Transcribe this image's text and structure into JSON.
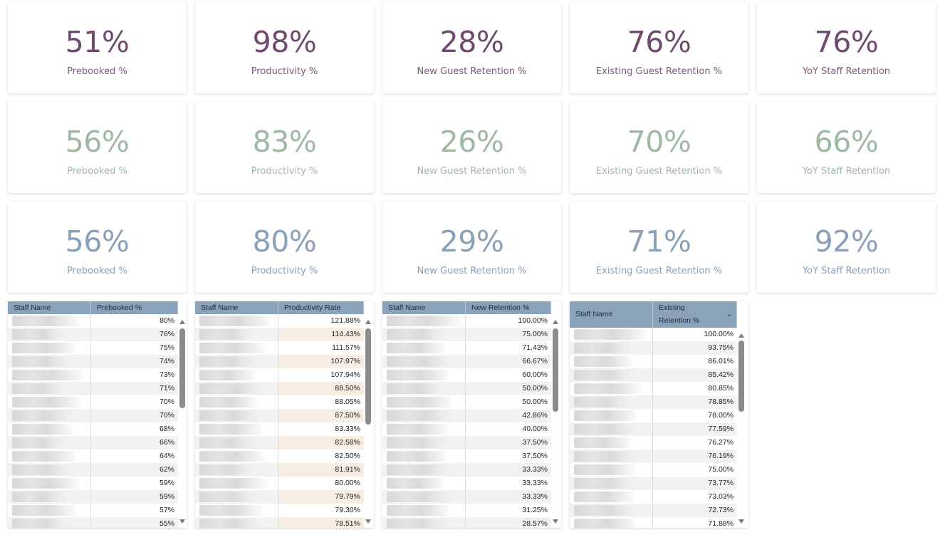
{
  "kpi_rows": [
    {
      "color": "#6e4a6e",
      "cards": [
        {
          "value": "51%",
          "label": "Prebooked %"
        },
        {
          "value": "98%",
          "label": "Productivity %"
        },
        {
          "value": "28%",
          "label": "New Guest Retention %"
        },
        {
          "value": "76%",
          "label": "Existing Guest Retention %"
        },
        {
          "value": "76%",
          "label": "YoY Staff Retention"
        }
      ]
    },
    {
      "color": "#9fb8a4",
      "cards": [
        {
          "value": "56%",
          "label": "Prebooked %"
        },
        {
          "value": "83%",
          "label": "Productivity %"
        },
        {
          "value": "26%",
          "label": "New Guest Retention %"
        },
        {
          "value": "70%",
          "label": "Existing Guest Retention %"
        },
        {
          "value": "66%",
          "label": "YoY Staff Retention"
        }
      ]
    },
    {
      "color": "#8aa0b8",
      "cards": [
        {
          "value": "56%",
          "label": "Prebooked %"
        },
        {
          "value": "80%",
          "label": "Productivity %"
        },
        {
          "value": "29%",
          "label": "New Guest Retention %"
        },
        {
          "value": "71%",
          "label": "Existing Guest Retention %"
        },
        {
          "value": "92%",
          "label": "YoY Staff Retention"
        }
      ]
    }
  ],
  "tables": [
    {
      "headers": [
        "Staff Name",
        "Prebooked %"
      ],
      "values": [
        "80%",
        "76%",
        "75%",
        "74%",
        "73%",
        "71%",
        "70%",
        "70%",
        "68%",
        "66%",
        "64%",
        "62%",
        "59%",
        "59%",
        "57%",
        "55%"
      ]
    },
    {
      "headers": [
        "Staff Name",
        "Productivity Rate"
      ],
      "values": [
        "121.88%",
        "114.43%",
        "111.57%",
        "107.97%",
        "107.94%",
        "88.50%",
        "88.05%",
        "87.50%",
        "83.33%",
        "82.58%",
        "82.50%",
        "81.91%",
        "80.00%",
        "79.79%",
        "79.30%",
        "78.51%"
      ]
    },
    {
      "headers": [
        "Staff Name",
        "New Retention %"
      ],
      "values": [
        "100.00%",
        "75.00%",
        "71.43%",
        "66.67%",
        "60.00%",
        "50.00%",
        "50.00%",
        "42.86%",
        "40.00%",
        "37.50%",
        "37.50%",
        "33.33%",
        "33.33%",
        "33.33%",
        "31.25%",
        "28.57%"
      ]
    },
    {
      "headers": [
        "Staff Name",
        "Existing Retention %"
      ],
      "header_line1": "Existing",
      "header_line2": "Retention %",
      "values": [
        "100.00%",
        "93.75%",
        "86.01%",
        "85.42%",
        "80.85%",
        "78.85%",
        "78.00%",
        "77.59%",
        "76.27%",
        "76.19%",
        "75.00%",
        "73.77%",
        "73.03%",
        "72.73%",
        "71.88%"
      ]
    }
  ],
  "icons": {
    "scroll_up": "triangle-up-icon",
    "scroll_down": "triangle-down-icon",
    "sort": "chevron-down-icon"
  }
}
